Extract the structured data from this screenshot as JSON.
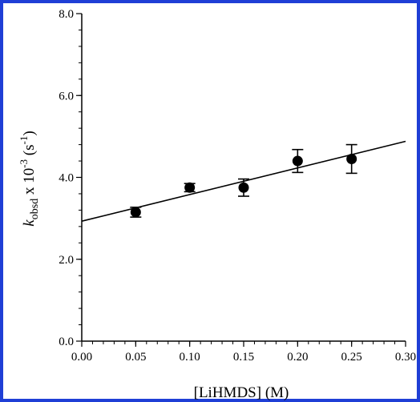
{
  "colors": {
    "frame": "#1f3fd6",
    "marker": "#000000",
    "line": "#000000",
    "background": "#ffffff"
  },
  "chart_data": {
    "type": "scatter",
    "title": "",
    "xlabel": "[LiHMDS] (M)",
    "ylabel": {
      "symbol": "k",
      "subscript": "obsd",
      "middle": " x 10",
      "exponent": "-3",
      "unit_open": " (s",
      "unit_exponent": "-1",
      "unit_close": ")"
    },
    "xlim": [
      0.0,
      0.3
    ],
    "ylim": [
      0.0,
      8.0
    ],
    "x_ticks": [
      "0.00",
      "0.05",
      "0.10",
      "0.15",
      "0.20",
      "0.25",
      "0.30"
    ],
    "y_ticks": [
      "0.0",
      "2.0",
      "4.0",
      "6.0",
      "8.0"
    ],
    "grid": false,
    "legend": "none",
    "series": [
      {
        "points": [
          {
            "x": 0.05,
            "y": 3.15,
            "err": 0.12
          },
          {
            "x": 0.1,
            "y": 3.75,
            "err": 0.1
          },
          {
            "x": 0.15,
            "y": 3.75,
            "err": 0.21
          },
          {
            "x": 0.2,
            "y": 4.4,
            "err": 0.28
          },
          {
            "x": 0.25,
            "y": 4.45,
            "err": 0.35
          }
        ]
      }
    ],
    "fit_line": {
      "intercept": 2.93,
      "slope": 6.5
    }
  }
}
